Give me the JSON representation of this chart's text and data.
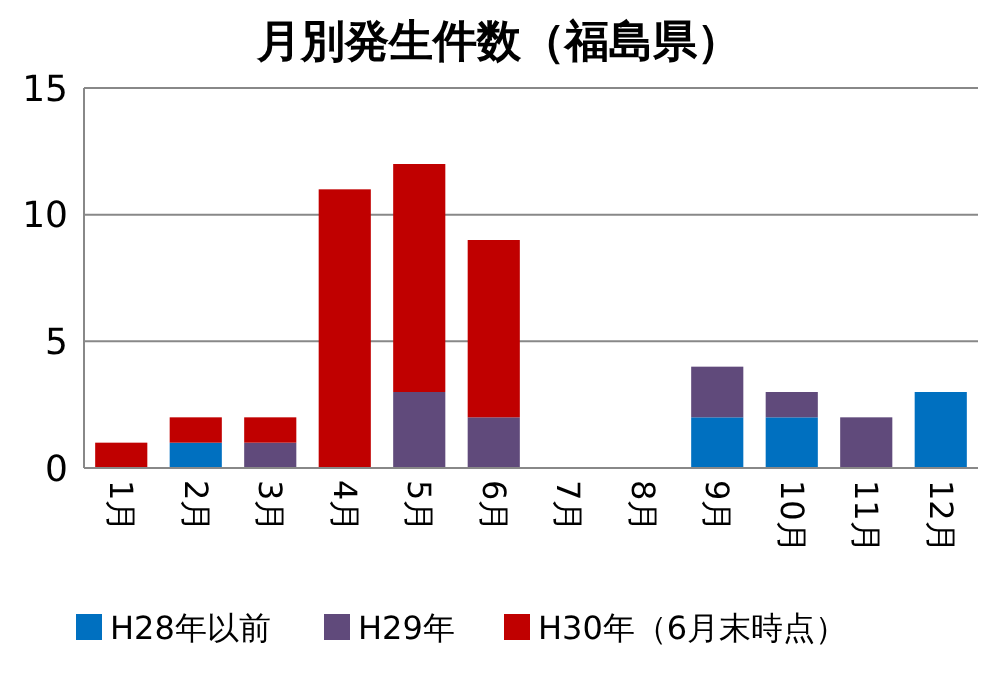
{
  "chart_data": {
    "type": "bar",
    "title": "月別発生件数（福島県）",
    "stacked": true,
    "categories": [
      "1月",
      "2月",
      "3月",
      "4月",
      "5月",
      "6月",
      "7月",
      "8月",
      "9月",
      "10月",
      "11月",
      "12月"
    ],
    "series": [
      {
        "name": "H28年以前",
        "color": "#0070c0",
        "values": [
          0,
          1,
          0,
          0,
          0,
          0,
          0,
          0,
          2,
          2,
          0,
          3
        ]
      },
      {
        "name": "H29年",
        "color": "#604a7b",
        "values": [
          0,
          0,
          1,
          0,
          3,
          2,
          0,
          0,
          2,
          1,
          2,
          0
        ]
      },
      {
        "name": "H30年（6月末時点）",
        "color": "#c00000",
        "values": [
          1,
          1,
          1,
          11,
          9,
          7,
          0,
          0,
          0,
          0,
          0,
          0
        ]
      }
    ],
    "ylim": [
      0,
      15
    ],
    "yticks": [
      0,
      5,
      10,
      15
    ],
    "grid": "y",
    "legend": "bottom"
  }
}
